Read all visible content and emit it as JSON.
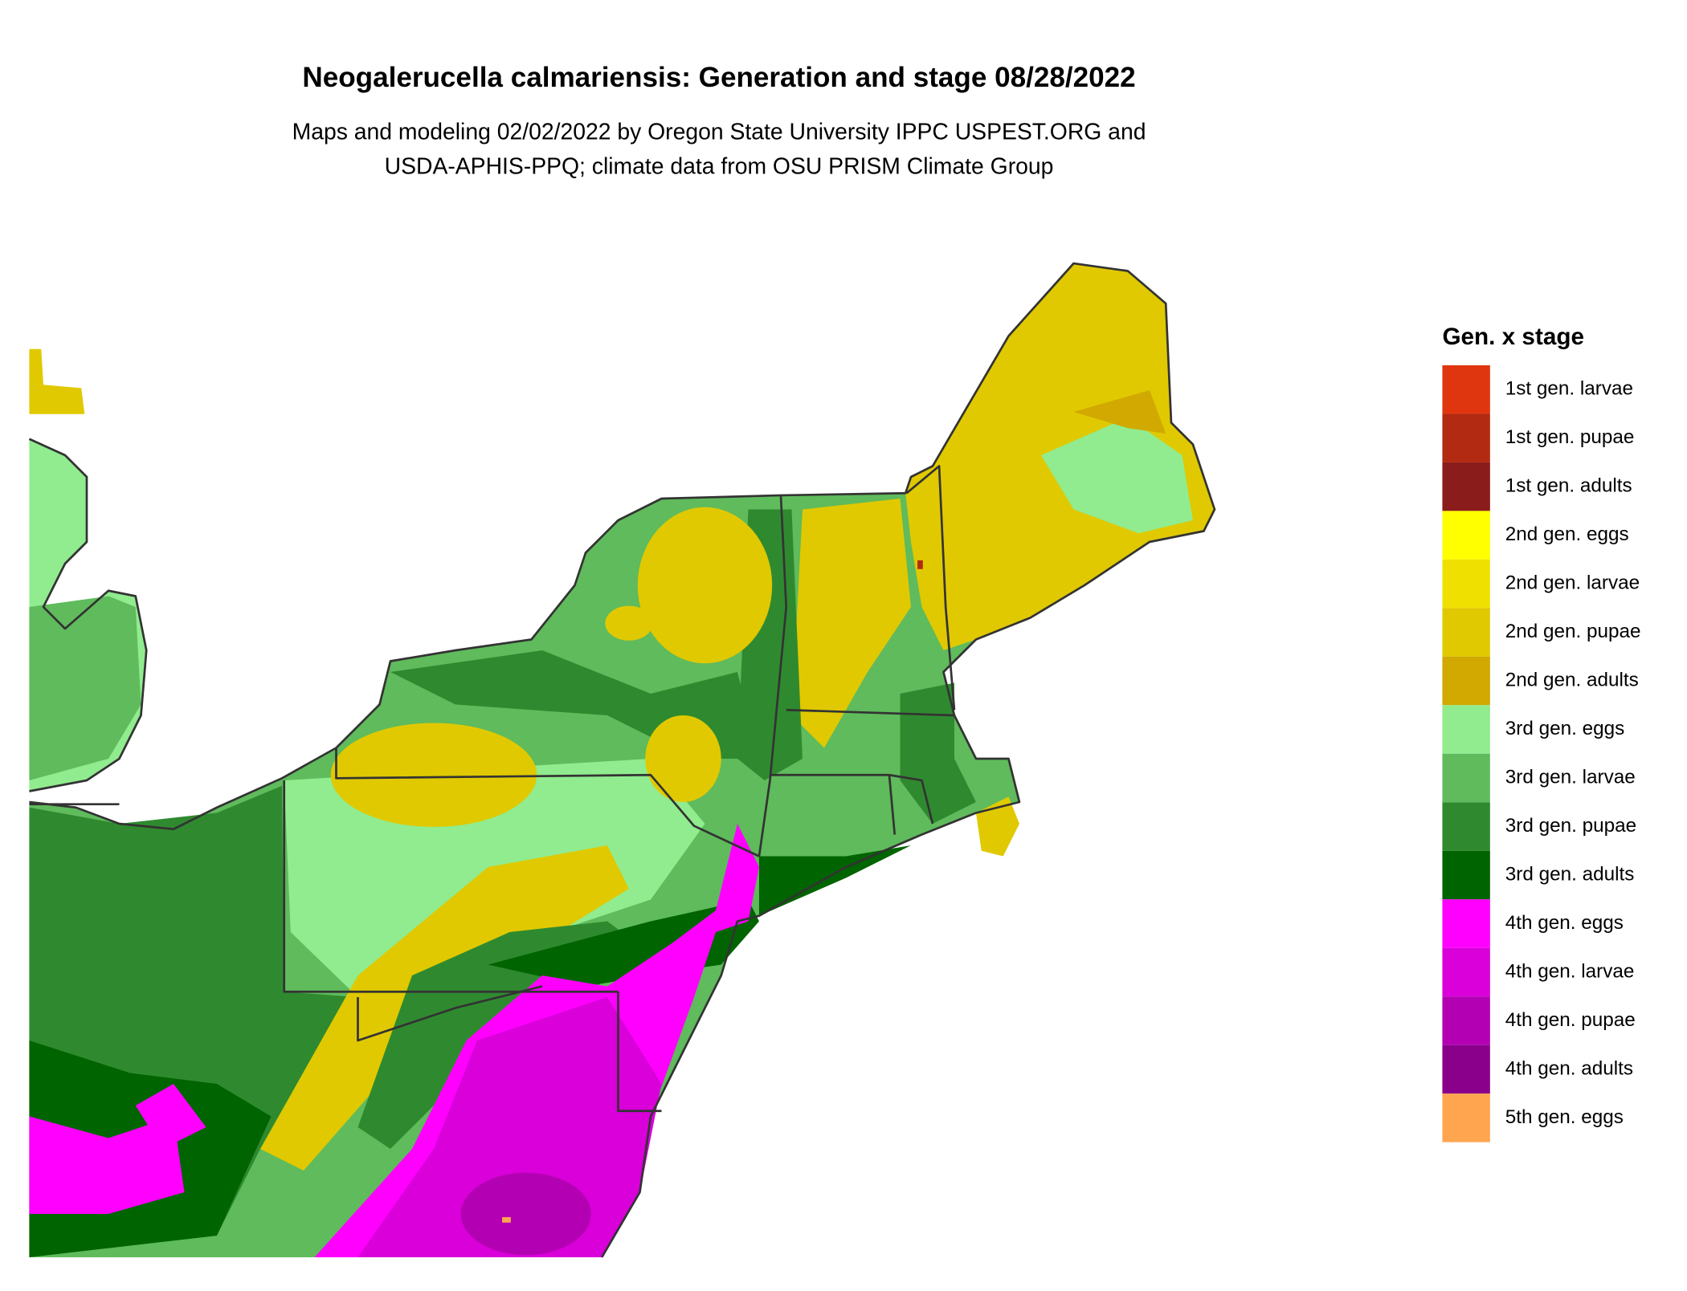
{
  "title": "Neogalerucella calmariensis: Generation and stage 08/28/2022",
  "subtitle": [
    "Maps and modeling 02/02/2022 by Oregon State University IPPC USPEST.ORG and",
    "USDA-APHIS-PPQ; climate data from OSU PRISM Climate Group"
  ],
  "legend": {
    "title": "Gen. x stage",
    "items": [
      {
        "label": "1st gen. larvae",
        "color": "#e0360f"
      },
      {
        "label": "1st gen. pupae",
        "color": "#b32a12"
      },
      {
        "label": "1st gen. adults",
        "color": "#8b1c1c"
      },
      {
        "label": "2nd gen. eggs",
        "color": "#ffff00"
      },
      {
        "label": "2nd gen. larvae",
        "color": "#f0e000"
      },
      {
        "label": "2nd gen. pupae",
        "color": "#e0c900"
      },
      {
        "label": "2nd gen. adults",
        "color": "#d1a900"
      },
      {
        "label": "3rd gen. eggs",
        "color": "#90ec8e"
      },
      {
        "label": "3rd gen. larvae",
        "color": "#5fbb5c"
      },
      {
        "label": "3rd gen. pupae",
        "color": "#2f8a2f"
      },
      {
        "label": "3rd gen. adults",
        "color": "#006400"
      },
      {
        "label": "4th gen. eggs",
        "color": "#ff00ff"
      },
      {
        "label": "4th gen. larvae",
        "color": "#d900d9"
      },
      {
        "label": "4th gen. pupae",
        "color": "#b300b3"
      },
      {
        "label": "4th gen. adults",
        "color": "#8b008b"
      },
      {
        "label": "5th gen. eggs",
        "color": "#ffa54f"
      }
    ]
  }
}
